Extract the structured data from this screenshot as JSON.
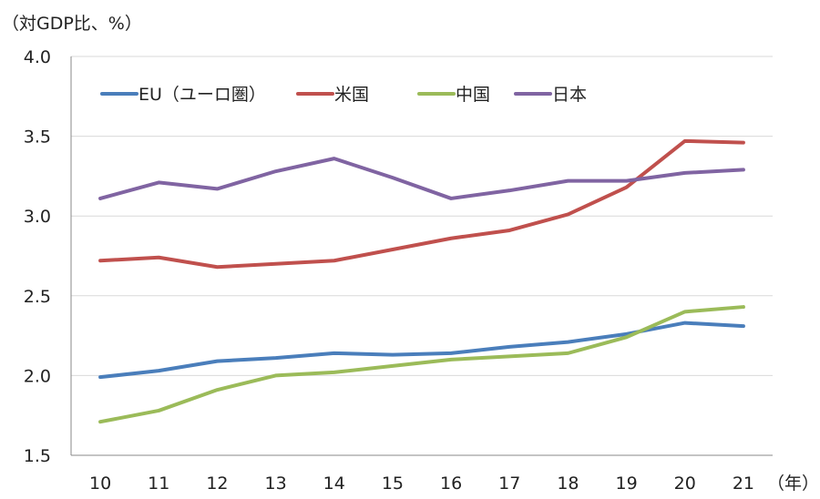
{
  "chart_data": {
    "type": "line",
    "ylabel": "（対GDP比、%）",
    "xlabel": "（年）",
    "ylim": [
      1.5,
      4.0
    ],
    "yticks": [
      "1.5",
      "2.0",
      "2.5",
      "3.0",
      "3.5",
      "4.0"
    ],
    "categories": [
      "10",
      "11",
      "12",
      "13",
      "14",
      "15",
      "16",
      "17",
      "18",
      "19",
      "20",
      "21"
    ],
    "grid": true,
    "legend_position": "top",
    "series": [
      {
        "name": "EU（ユーロ圏）",
        "color": "#4a7ebb",
        "values": [
          1.99,
          2.03,
          2.09,
          2.11,
          2.14,
          2.13,
          2.14,
          2.18,
          2.21,
          2.26,
          2.33,
          2.31
        ]
      },
      {
        "name": "米国",
        "color": "#c0504d",
        "values": [
          2.72,
          2.74,
          2.68,
          2.7,
          2.72,
          2.79,
          2.86,
          2.91,
          3.01,
          3.18,
          3.47,
          3.46
        ]
      },
      {
        "name": "中国",
        "color": "#9bbb59",
        "values": [
          1.71,
          1.78,
          1.91,
          2.0,
          2.02,
          2.06,
          2.1,
          2.12,
          2.14,
          2.24,
          2.4,
          2.43
        ]
      },
      {
        "name": "日本",
        "color": "#8064a2",
        "values": [
          3.11,
          3.21,
          3.17,
          3.28,
          3.36,
          3.24,
          3.11,
          3.16,
          3.22,
          3.22,
          3.27,
          3.29
        ]
      }
    ]
  }
}
